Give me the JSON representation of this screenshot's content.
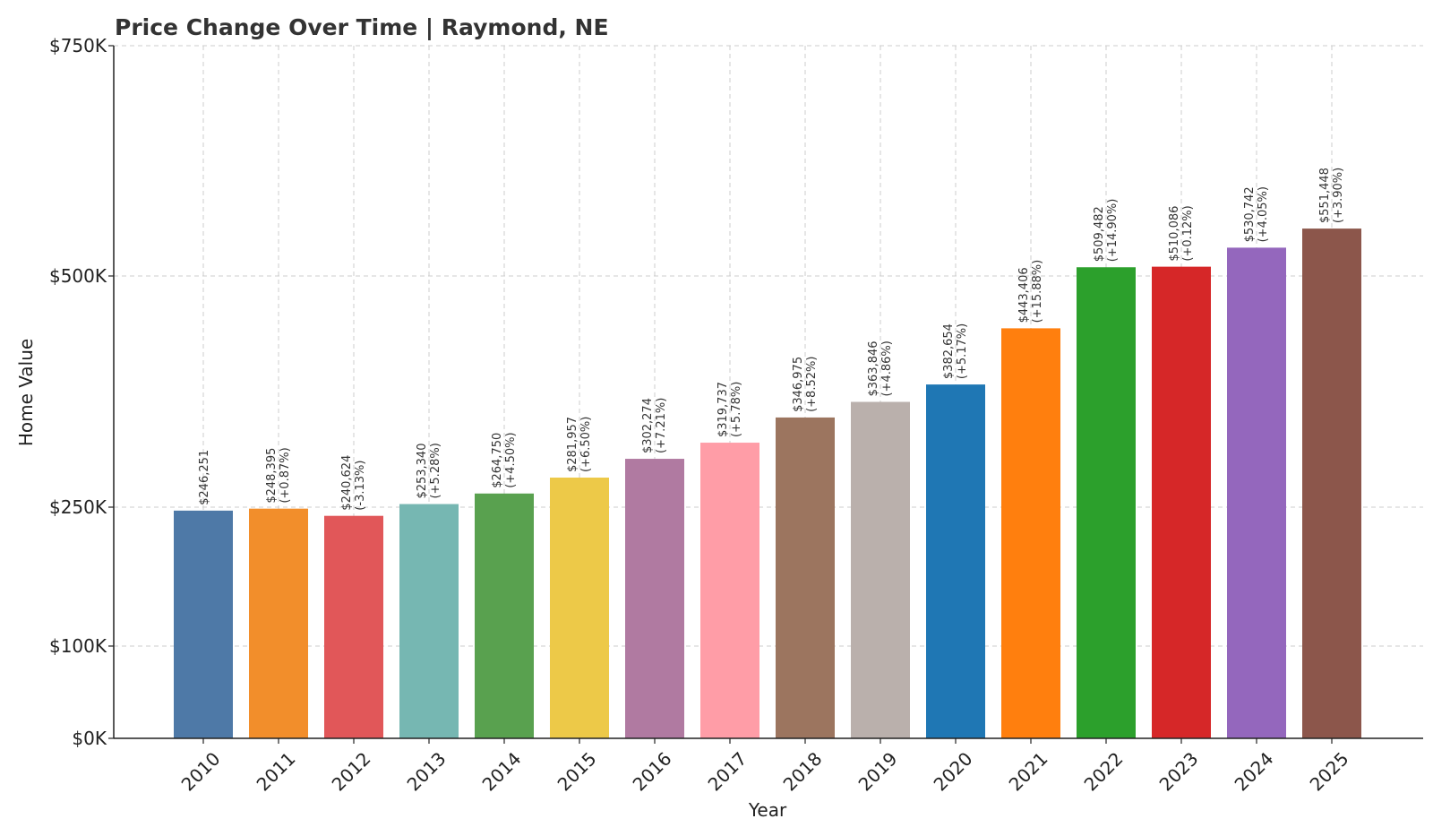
{
  "chart_data": {
    "type": "bar",
    "title": "Price Change Over Time | Raymond, NE",
    "xlabel": "Year",
    "ylabel": "Home Value",
    "ylim": [
      0,
      750000
    ],
    "yticks": [
      0,
      100000,
      250000,
      500000,
      750000
    ],
    "ytick_labels": [
      "$0K",
      "$100K",
      "$250K",
      "$500K",
      "$750K"
    ],
    "grid": true,
    "categories": [
      "2010",
      "2011",
      "2012",
      "2013",
      "2014",
      "2015",
      "2016",
      "2017",
      "2018",
      "2019",
      "2020",
      "2021",
      "2022",
      "2023",
      "2024",
      "2025"
    ],
    "values": [
      246251,
      248395,
      240624,
      253340,
      264750,
      281957,
      302274,
      319737,
      346975,
      363846,
      382654,
      443406,
      509482,
      510086,
      530742,
      551448
    ],
    "value_labels": [
      "$246,251",
      "$248,395",
      "$240,624",
      "$253,340",
      "$264,750",
      "$281,957",
      "$302,274",
      "$319,737",
      "$346,975",
      "$363,846",
      "$382,654",
      "$443,406",
      "$509,482",
      "$510,086",
      "$530,742",
      "$551,448"
    ],
    "change_labels": [
      "",
      "(+0.87%)",
      "(-3.13%)",
      "(+5.28%)",
      "(+4.50%)",
      "(+6.50%)",
      "(+7.21%)",
      "(+5.78%)",
      "(+8.52%)",
      "(+4.86%)",
      "(+5.17%)",
      "(+15.88%)",
      "(+14.90%)",
      "(+0.12%)",
      "(+4.05%)",
      "(+3.90%)"
    ],
    "colors": [
      "#4e79a7",
      "#f28e2b",
      "#e15759",
      "#76b7b2",
      "#59a14f",
      "#edc948",
      "#b07aa1",
      "#ff9da7",
      "#9c755f",
      "#bab0ac",
      "#1f77b4",
      "#ff7f0e",
      "#2ca02c",
      "#d62728",
      "#9467bd",
      "#8c564b"
    ]
  }
}
